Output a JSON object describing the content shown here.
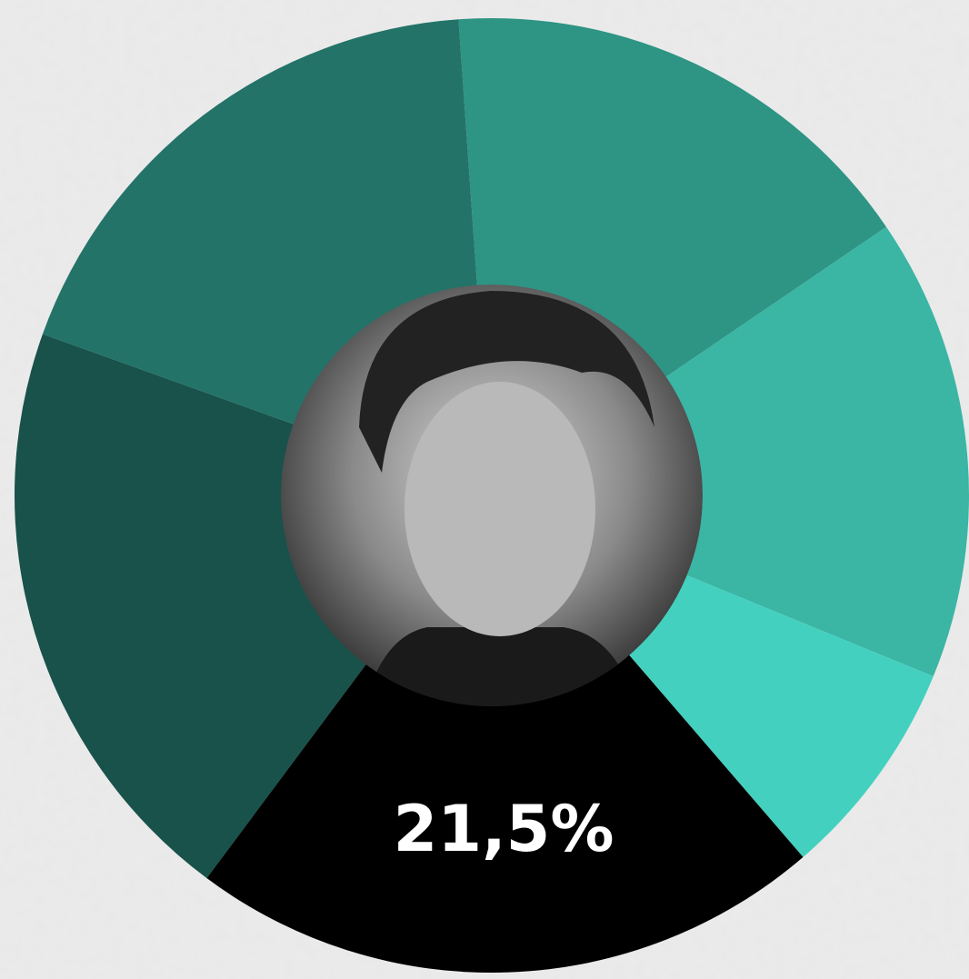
{
  "chart_data": {
    "type": "donut",
    "values": [
      16.6,
      15.7,
      7.5,
      21.5,
      20.3,
      18.4
    ],
    "value_labels": [
      null,
      null,
      null,
      "21,5%",
      null,
      null
    ],
    "colors": [
      "#2e9484",
      "#3bb5a4",
      "#44d0bf",
      "#000000",
      "#18524a",
      "#237369"
    ]
  }
}
